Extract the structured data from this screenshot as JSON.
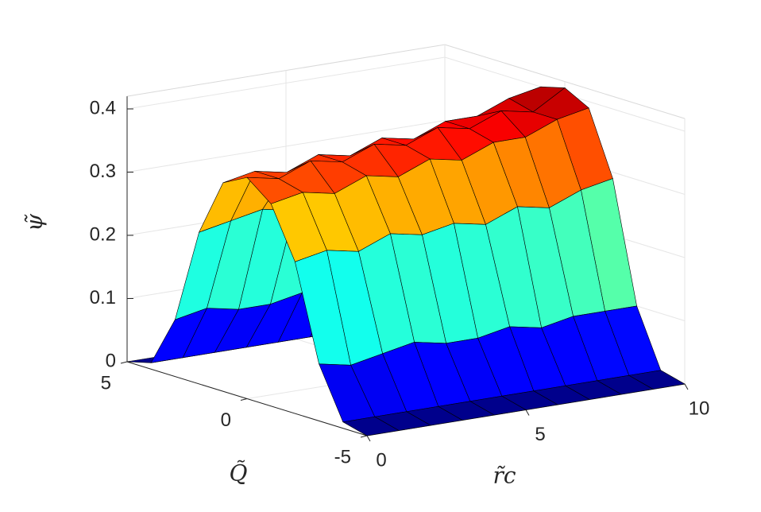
{
  "chart_data": {
    "type": "surface",
    "x_label": "r̃c",
    "y_label": "Q̃",
    "z_label": "ψ̃",
    "x": [
      0,
      1,
      2,
      3,
      4,
      5,
      6,
      7,
      8,
      9,
      10
    ],
    "y": [
      -5,
      -4,
      -3,
      -2,
      -1,
      0,
      1,
      2,
      3,
      4,
      5
    ],
    "z": [
      [
        0,
        0,
        0,
        0,
        0,
        0,
        0,
        0,
        0,
        0,
        0
      ],
      [
        0.01,
        0.01,
        0.01,
        0.01,
        0.01,
        0.01,
        0.01,
        0.01,
        0.01,
        0.01,
        0.01
      ],
      [
        0.09,
        0.08,
        0.09,
        0.1,
        0.09,
        0.09,
        0.1,
        0.09,
        0.1,
        0.1,
        0.1
      ],
      [
        0.24,
        0.25,
        0.24,
        0.26,
        0.25,
        0.26,
        0.25,
        0.27,
        0.26,
        0.28,
        0.29
      ],
      [
        0.32,
        0.33,
        0.32,
        0.34,
        0.33,
        0.35,
        0.34,
        0.36,
        0.36,
        0.38,
        0.39
      ],
      [
        0.35,
        0.34,
        0.36,
        0.35,
        0.37,
        0.36,
        0.38,
        0.37,
        0.39,
        0.38,
        0.41
      ],
      [
        0.33,
        0.34,
        0.33,
        0.35,
        0.34,
        0.36,
        0.35,
        0.37,
        0.37,
        0.39,
        0.4
      ],
      [
        0.24,
        0.25,
        0.26,
        0.25,
        0.26,
        0.25,
        0.27,
        0.26,
        0.28,
        0.28,
        0.29
      ],
      [
        0.09,
        0.1,
        0.09,
        0.09,
        0.1,
        0.09,
        0.1,
        0.1,
        0.1,
        0.1,
        0.11
      ],
      [
        0.01,
        0.01,
        0.01,
        0.01,
        0.01,
        0.01,
        0.01,
        0.01,
        0.01,
        0.01,
        0.01
      ],
      [
        0,
        0,
        0,
        0,
        0,
        0,
        0,
        0,
        0,
        0,
        0
      ]
    ],
    "xlim": [
      0,
      10
    ],
    "ylim": [
      -5,
      5
    ],
    "zlim": [
      0,
      0.42
    ],
    "xticks": [
      0,
      5,
      10
    ],
    "yticks": [
      -5,
      0,
      5
    ],
    "zticks": [
      0,
      0.1,
      0.2,
      0.3,
      0.4
    ],
    "grid": true,
    "colormap": "jet",
    "edge_color": "#000000"
  }
}
